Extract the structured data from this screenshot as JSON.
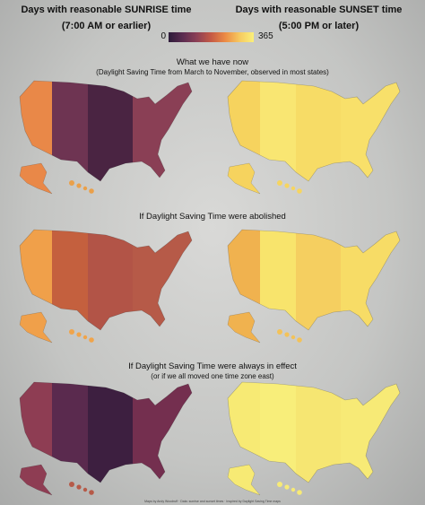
{
  "header": {
    "sunrise_line1": "Days with reasonable SUNRISE time",
    "sunrise_line2": "(7:00 AM or earlier)",
    "sunset_line1": "Days with reasonable SUNSET time",
    "sunset_line2": "(5:00 PM or later)"
  },
  "legend": {
    "min": "0",
    "max": "365",
    "colors": [
      "#2d1b3a",
      "#5b2c50",
      "#8c3f55",
      "#c55a45",
      "#ec8b45",
      "#f6c960",
      "#faf07a"
    ]
  },
  "sections": [
    {
      "title": "What we have now",
      "subtitle": "(Daylight Saving Time from March to November, observed in most states)"
    },
    {
      "title": "If Daylight Saving Time were abolished",
      "subtitle": ""
    },
    {
      "title": "If Daylight Saving Time were always in effect",
      "subtitle": "(or if we all moved one time zone east)"
    }
  ],
  "maps": [
    {
      "name": "now-sunrise",
      "zones": [
        "#e98848",
        "#6e3452",
        "#4a2442",
        "#8a3f55"
      ],
      "hawaii": "#eaa04a"
    },
    {
      "name": "now-sunset",
      "zones": [
        "#f6d35e",
        "#f9e672",
        "#f7dc66",
        "#f8e06a"
      ],
      "hawaii": "#f6d560"
    },
    {
      "name": "abolished-sunrise",
      "zones": [
        "#f0a04a",
        "#c4603e",
        "#b25447",
        "#b65a48"
      ],
      "hawaii": "#f0a44a"
    },
    {
      "name": "abolished-sunset",
      "zones": [
        "#f0b24f",
        "#f8e46c",
        "#f5cf60",
        "#f7dc66"
      ],
      "hawaii": "#f3c258"
    },
    {
      "name": "always-sunrise",
      "zones": [
        "#8e3d53",
        "#5a2a4e",
        "#3d1f40",
        "#742f4f"
      ],
      "hawaii": "#b65a48"
    },
    {
      "name": "always-sunset",
      "zones": [
        "#f7ea74",
        "#f8ee7a",
        "#f6e672",
        "#f7ea76"
      ],
      "hawaii": "#f7ea76"
    }
  ],
  "credit": "Maps by Andy Woodruff · Data: sunrise and sunset times · Inspired by Daylight Saving Time maps"
}
